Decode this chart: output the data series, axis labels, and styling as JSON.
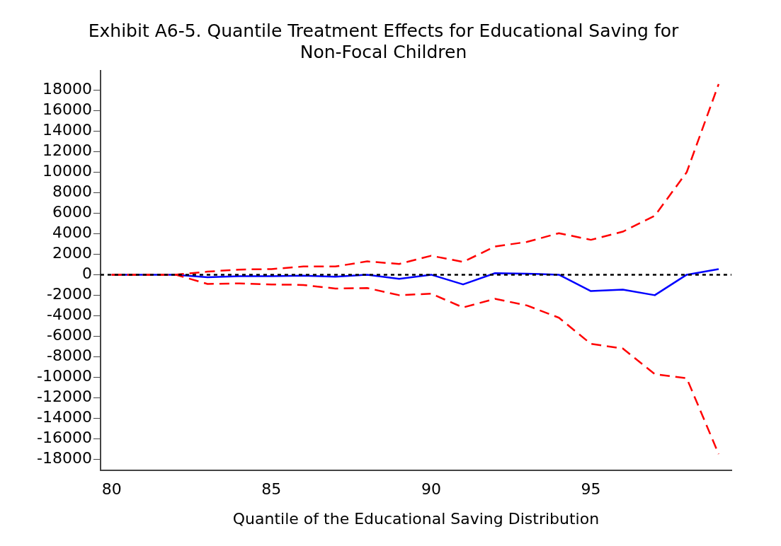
{
  "chart_data": {
    "type": "line",
    "title": [
      "Exhibit A6-5. Quantile Treatment Effects for Educational Saving for",
      "Non-Focal Children"
    ],
    "xlabel": "Quantile of the Educational Saving Distribution",
    "x": [
      80,
      81,
      82,
      83,
      84,
      85,
      86,
      87,
      88,
      89,
      90,
      91,
      92,
      93,
      94,
      95,
      96,
      97,
      98,
      99
    ],
    "series": [
      {
        "color": "#ff0000",
        "line_style": "dashed",
        "values": [
          0,
          0,
          0,
          300,
          500,
          550,
          800,
          800,
          1300,
          1050,
          1850,
          1250,
          2750,
          3200,
          4050,
          3400,
          4200,
          5750,
          10000,
          18600
        ]
      },
      {
        "color": "#ff0000",
        "line_style": "dashed",
        "values": [
          0,
          0,
          0,
          -900,
          -850,
          -950,
          -1000,
          -1350,
          -1300,
          -2000,
          -1850,
          -3200,
          -2350,
          -3000,
          -4200,
          -6750,
          -7200,
          -9700,
          -10100,
          -17500
        ]
      },
      {
        "color": "#0000ff",
        "line_style": "solid",
        "values": [
          0,
          0,
          0,
          -250,
          -150,
          -150,
          -100,
          -200,
          0,
          -400,
          0,
          -950,
          150,
          100,
          0,
          -1600,
          -1450,
          -2000,
          0,
          550
        ]
      }
    ],
    "ref_lines": [
      {
        "axis": "y",
        "value": 0,
        "color": "#000000",
        "line_style": "dotted"
      }
    ],
    "xlim": [
      79.65,
      99.4
    ],
    "xticks": [
      80,
      85,
      90,
      95
    ],
    "ylim": [
      -19100,
      19900
    ],
    "yticks": [
      -18000,
      -16000,
      -14000,
      -12000,
      -10000,
      -8000,
      -6000,
      -4000,
      -2000,
      0,
      2000,
      4000,
      6000,
      8000,
      10000,
      12000,
      14000,
      16000,
      18000
    ],
    "grid": false,
    "legend": false,
    "marker": "none"
  }
}
